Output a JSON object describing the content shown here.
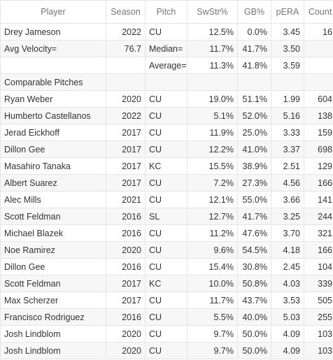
{
  "columns": [
    "Player",
    "Season",
    "Pitch",
    "SwStr%",
    "GB%",
    "pERA",
    "Count"
  ],
  "header_rows": [
    [
      "Drey Jameson",
      "2022",
      "CU",
      "12.5%",
      "0.0%",
      "3.45",
      "16"
    ],
    [
      "Avg Velocity=",
      "76.7",
      "Median=",
      "11.7%",
      "41.7%",
      "3.50",
      ""
    ],
    [
      "",
      "",
      "Average=",
      "11.3%",
      "41.8%",
      "3.59",
      ""
    ],
    [
      "Comparable Pitches",
      "",
      "",
      "",
      "",
      "",
      ""
    ]
  ],
  "comparables": [
    [
      "Ryan Weber",
      "2020",
      "CU",
      "19.0%",
      "51.1%",
      "1.99",
      "604"
    ],
    [
      "Humberto Castellanos",
      "2022",
      "CU",
      "5.1%",
      "52.0%",
      "5.16",
      "138"
    ],
    [
      "Jerad Eickhoff",
      "2017",
      "CU",
      "11.9%",
      "25.0%",
      "3.33",
      "159"
    ],
    [
      "Dillon Gee",
      "2017",
      "CU",
      "12.2%",
      "41.0%",
      "3.37",
      "698"
    ],
    [
      "Masahiro Tanaka",
      "2017",
      "KC",
      "15.5%",
      "38.9%",
      "2.51",
      "129"
    ],
    [
      "Albert Suarez",
      "2017",
      "CU",
      "7.2%",
      "27.3%",
      "4.56",
      "166"
    ],
    [
      "Alec Mills",
      "2021",
      "CU",
      "12.1%",
      "55.0%",
      "3.66",
      "141"
    ],
    [
      "Scott Feldman",
      "2016",
      "SL",
      "12.7%",
      "41.7%",
      "3.25",
      "244"
    ],
    [
      "Michael Blazek",
      "2016",
      "CU",
      "11.2%",
      "47.6%",
      "3.70",
      "321"
    ],
    [
      "Noe Ramirez",
      "2020",
      "CU",
      "9.6%",
      "54.5%",
      "4.18",
      "166"
    ],
    [
      "Dillon Gee",
      "2016",
      "CU",
      "15.4%",
      "30.8%",
      "2.45",
      "104"
    ],
    [
      "Scott Feldman",
      "2017",
      "KC",
      "10.0%",
      "50.8%",
      "4.03",
      "339"
    ],
    [
      "Max Scherzer",
      "2017",
      "CU",
      "11.7%",
      "43.7%",
      "3.53",
      "505"
    ],
    [
      "Francisco Rodriguez",
      "2016",
      "CU",
      "5.5%",
      "40.0%",
      "5.03",
      "255"
    ],
    [
      "Josh Lindblom",
      "2020",
      "CU",
      "9.7%",
      "50.0%",
      "4.09",
      "103"
    ],
    [
      "Josh Lindblom",
      "2020",
      "CU",
      "9.7%",
      "50.0%",
      "4.09",
      "103"
    ]
  ]
}
